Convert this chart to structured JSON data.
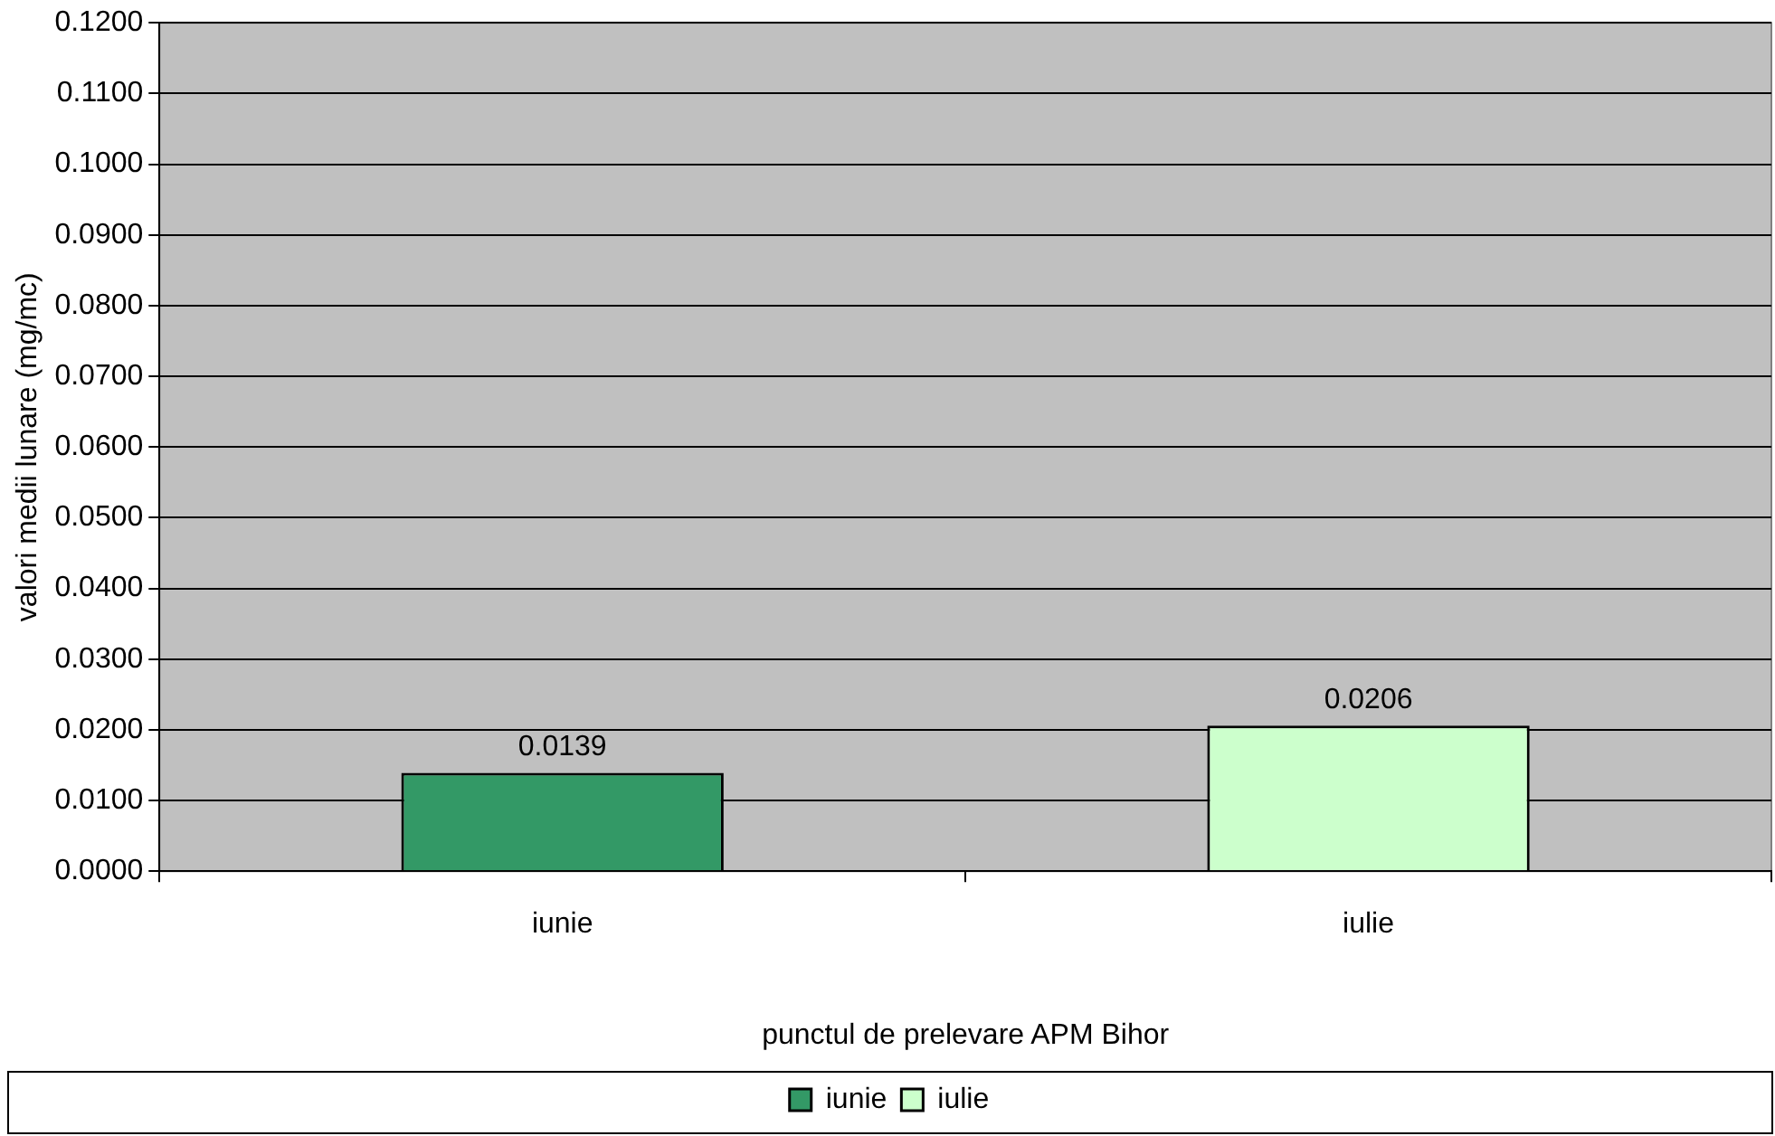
{
  "chart_data": {
    "type": "bar",
    "xlabel": "punctul de prelevare APM Bihor",
    "ylabel": "valori medii lunare (mg/mc)",
    "categories": [
      "iunie",
      "iulie"
    ],
    "series": [
      {
        "name": "iunie",
        "color": "#339966",
        "values": [
          0.0139,
          null
        ]
      },
      {
        "name": "iulie",
        "color": "#ccffcc",
        "values": [
          null,
          0.0206
        ]
      }
    ],
    "ylim": [
      0,
      0.12
    ],
    "yticks": [
      {
        "value": 0,
        "label": "0.0000"
      },
      {
        "value": 0.01,
        "label": "0.0100"
      },
      {
        "value": 0.02,
        "label": "0.0200"
      },
      {
        "value": 0.03,
        "label": "0.0300"
      },
      {
        "value": 0.04,
        "label": "0.0400"
      },
      {
        "value": 0.05,
        "label": "0.0500"
      },
      {
        "value": 0.06,
        "label": "0.0600"
      },
      {
        "value": 0.07,
        "label": "0.0700"
      },
      {
        "value": 0.08,
        "label": "0.0800"
      },
      {
        "value": 0.09,
        "label": "0.0900"
      },
      {
        "value": 0.1,
        "label": "0.1000"
      },
      {
        "value": 0.11,
        "label": "0.1100"
      },
      {
        "value": 0.12,
        "label": "0.1200"
      }
    ],
    "grid": "y",
    "legend": "bottom",
    "data_labels": true
  }
}
